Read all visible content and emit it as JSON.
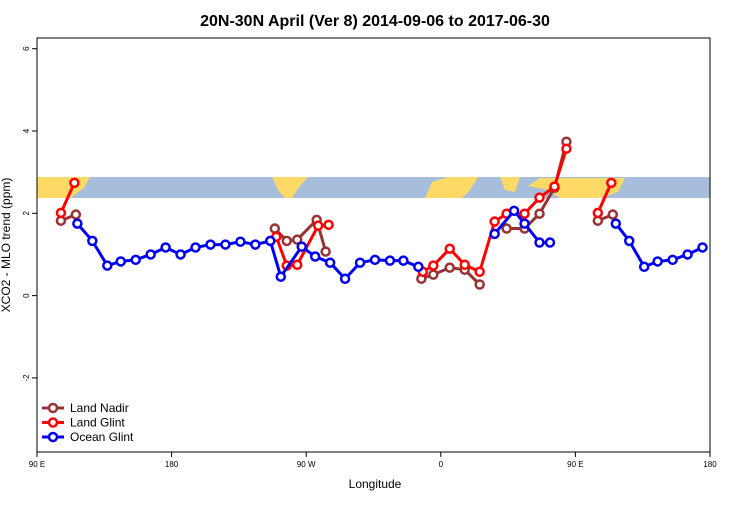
{
  "chart_data": {
    "type": "line",
    "title": "20N-30N April (Ver 8)   2014-09-06 to 2017-06-30",
    "xlabel": "Longitude",
    "ylabel": "XCO2 - MLO trend (ppm)",
    "xlim": [
      90,
      540
    ],
    "xticks": [
      {
        "value": 90,
        "label": "90 E"
      },
      180,
      {
        "value": 270,
        "label": "90 W"
      },
      {
        "value": 360,
        "label": "0"
      },
      {
        "value": 450,
        "label": "90 E"
      },
      {
        "value": 540,
        "label": "180"
      }
    ],
    "ylim": [
      -3.8,
      6.26
    ],
    "yticks": [
      -2,
      0,
      2,
      4,
      6
    ],
    "legend": "bottom-left",
    "series": [
      {
        "name": "Land Nadir",
        "color": "#993333",
        "x": [
          106,
          116,
          200,
          249,
          257,
          264,
          277,
          283,
          320,
          347,
          355,
          366,
          376,
          386,
          395,
          404,
          416,
          426,
          436,
          444,
          455,
          465,
          475
        ],
        "values": [
          1.82,
          1.97,
          null,
          1.63,
          1.33,
          1.36,
          1.84,
          1.07,
          null,
          0.41,
          0.51,
          0.68,
          0.63,
          0.27,
          null,
          1.63,
          1.63,
          1.99,
          2.62,
          3.74,
          null,
          1.82,
          1.97
        ]
      },
      {
        "name": "Land Glint",
        "color": "#ff0000",
        "x": [
          106,
          115,
          200,
          250,
          257,
          264,
          278,
          285,
          320,
          348,
          355,
          366,
          376,
          386,
          396,
          404,
          416,
          426,
          436,
          444,
          455,
          465,
          474
        ],
        "values": [
          2.01,
          2.74,
          null,
          1.43,
          0.73,
          0.75,
          1.7,
          1.72,
          null,
          0.58,
          0.73,
          1.14,
          0.75,
          0.58,
          1.8,
          1.99,
          1.99,
          2.38,
          2.65,
          3.57,
          null,
          2.01,
          2.74
        ]
      },
      {
        "name": "Ocean Glint",
        "color": "#0000ee",
        "x": [
          117,
          127,
          137,
          146,
          156,
          166,
          176,
          186,
          196,
          206,
          216,
          226,
          236,
          246,
          253,
          267,
          276,
          286,
          296,
          306,
          316,
          326,
          335,
          345,
          370,
          396,
          409,
          416,
          426,
          433,
          455,
          477,
          486,
          496,
          505,
          515,
          525,
          535
        ],
        "values": [
          1.75,
          1.33,
          0.73,
          0.83,
          0.87,
          1.0,
          1.17,
          1.0,
          1.17,
          1.24,
          1.24,
          1.31,
          1.24,
          1.33,
          0.46,
          1.19,
          0.95,
          0.8,
          0.41,
          0.8,
          0.87,
          0.85,
          0.85,
          0.7,
          null,
          1.5,
          2.06,
          1.75,
          1.29,
          1.29,
          null,
          1.75,
          1.33,
          0.7,
          0.83,
          0.87,
          1.0,
          1.17
        ]
      }
    ]
  }
}
